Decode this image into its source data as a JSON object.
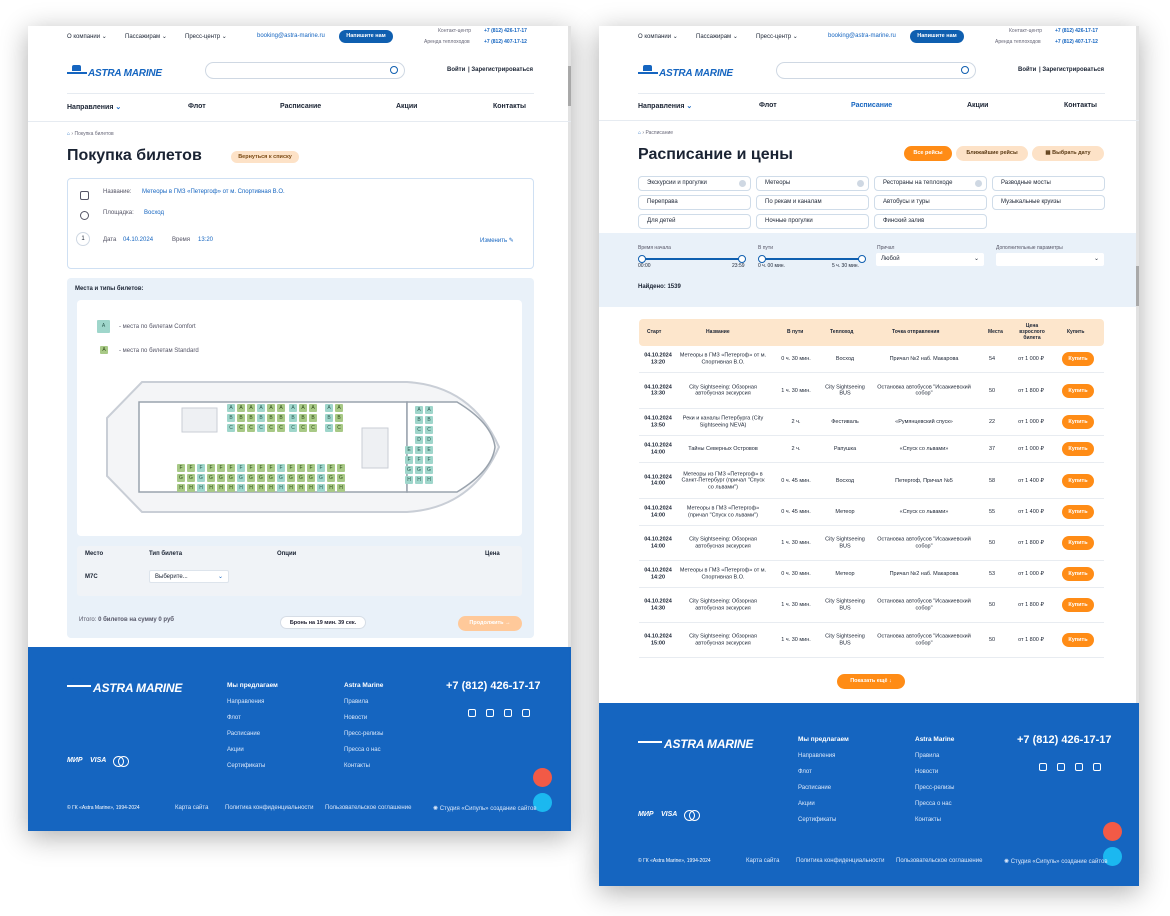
{
  "header": {
    "menu": [
      "О компании",
      "Пассажирам",
      "Пресс-центр"
    ],
    "email": "booking@astra-marine.ru",
    "write_btn": "Напишите нам",
    "contact_label": "Контакт-центр",
    "contact_phone": "+7 (812) 426-17-17",
    "rent_label": "Аренда теплоходов",
    "rent_phone": "+7 (812) 407-17-12",
    "login": "Войти",
    "register": "Зарегистрироваться",
    "logo": "ASTRA MARINE"
  },
  "nav": [
    "Направления",
    "Флот",
    "Расписание",
    "Акции",
    "Контакты"
  ],
  "left": {
    "breadcrumb": "Покупка билетов",
    "title": "Покупка билетов",
    "back_btn": "Вернуться к списку",
    "name_label": "Название:",
    "name_value": "Метеоры в ГМЗ «Петергоф» от м. Спортивная В.О.",
    "pier_label": "Площадка:",
    "pier_value": "Восход",
    "step": "1",
    "date_label": "Дата",
    "date_value": "04.10.2024",
    "time_label": "Время",
    "time_value": "13:20",
    "edit": "Изменить",
    "seats_title": "Места и типы билетов:",
    "legend_comfort": "- места по билетам Comfort",
    "legend_standard": "- места по билетам Standard",
    "th": [
      "Место",
      "Тип билета",
      "Опции",
      "Цена"
    ],
    "seat_code": "M7C",
    "select_placeholder": "Выберите...",
    "total": "Итого:",
    "total_value": "0 билетов на сумму 0 руб",
    "timer": "Бронь на 19 мин. 39 сек.",
    "continue": "Продолжить"
  },
  "footer": {
    "phone": "+7 (812) 426-17-17",
    "col1_title": "Мы предлагаем",
    "col1": [
      "Направления",
      "Флот",
      "Расписание",
      "Акции",
      "Сертификаты"
    ],
    "col2_title": "Astra Marine",
    "col2": [
      "Правила",
      "Новости",
      "Пресс-релизы",
      "Пресса о нас",
      "Контакты"
    ],
    "payments": [
      "МИР",
      "VISA"
    ],
    "copyright": "© ГК «Astra Marine», 1994-2024",
    "links": [
      "Карта сайта",
      "Политика конфиденциальности",
      "Пользовательское соглашение"
    ],
    "studio": "Студия «Сипуль» создание сайтов"
  },
  "right": {
    "breadcrumb": "Расписание",
    "title": "Расписание и цены",
    "tabs": [
      "Все рейсы",
      "Ближайшие рейсы",
      "Выбрать дату"
    ],
    "chips": [
      "Экскурсии и прогулки",
      "Метеоры",
      "Рестораны на теплоходе",
      "Разводные мосты",
      "Переправа",
      "По рекам и каналам",
      "Автобусы и туры",
      "Музыкальные круизы",
      "Для детей",
      "Ночные прогулки",
      "Финский залив"
    ],
    "f_start": "Время начала",
    "f_start_min": "00:00",
    "f_start_max": "23:59",
    "f_way": "В пути",
    "f_way_min": "0 ч. 00 мин.",
    "f_way_max": "5 ч. 30 мин.",
    "f_pier": "Причал",
    "f_pier_val": "Любой",
    "f_extra": "Дополнительные параметры",
    "found": "Найдено: 1539",
    "th": [
      "Старт",
      "Название",
      "В пути",
      "Теплоход",
      "Точка отправления",
      "Места",
      "Цена взрослого билета",
      "Купить"
    ],
    "rows": [
      [
        "04.10.2024",
        "13:20",
        "Метеоры в ГМЗ «Петергоф» от м. Спортивная В.О.",
        "0 ч. 30 мин.",
        "Восход",
        "Причал №2 наб. Макарова",
        "54",
        "от 1 000 ₽"
      ],
      [
        "04.10.2024",
        "13:30",
        "City Sightseeing: Обзорная автобусная экскурсия",
        "1 ч. 30 мин.",
        "City Sightseeing BUS",
        "Остановка автобусов \"Исаакиевский собор\"",
        "50",
        "от 1 800 ₽"
      ],
      [
        "04.10.2024",
        "13:50",
        "Реки и каналы Петербурга (City Sightseeing NEVA)",
        "2 ч.",
        "Фестиваль",
        "«Румянцевский спуск»",
        "22",
        "от 1 000 ₽"
      ],
      [
        "04.10.2024",
        "14:00",
        "Тайны Северных Островов",
        "2 ч.",
        "Рапушка",
        "«Спуск со львами»",
        "37",
        "от 1 000 ₽"
      ],
      [
        "04.10.2024",
        "14:00",
        "Метеоры из ГМЗ «Петергоф» в Санкт-Петербург (причал \"Спуск со львами\")",
        "0 ч. 45 мин.",
        "Восход",
        "Петергоф, Причал №5",
        "58",
        "от 1 400 ₽"
      ],
      [
        "04.10.2024",
        "14:00",
        "Метеоры в ГМЗ «Петергоф» (причал \"Спуск со львами\")",
        "0 ч. 45 мин.",
        "Метеор",
        "«Спуск со львами»",
        "55",
        "от 1 400 ₽"
      ],
      [
        "04.10.2024",
        "14:00",
        "City Sightseeing: Обзорная автобусная экскурсия",
        "1 ч. 30 мин.",
        "City Sightseeing BUS",
        "Остановка автобусов \"Исаакиевский собор\"",
        "50",
        "от 1 800 ₽"
      ],
      [
        "04.10.2024",
        "14:20",
        "Метеоры в ГМЗ «Петергоф» от м. Спортивная В.О.",
        "0 ч. 30 мин.",
        "Метеор",
        "Причал №2 наб. Макарова",
        "53",
        "от 1 000 ₽"
      ],
      [
        "04.10.2024",
        "14:30",
        "City Sightseeing: Обзорная автобусная экскурсия",
        "1 ч. 30 мин.",
        "City Sightseeing BUS",
        "Остановка автобусов \"Исаакиевский собор\"",
        "50",
        "от 1 800 ₽"
      ],
      [
        "04.10.2024",
        "15:00",
        "City Sightseeing: Обзорная автобусная экскурсия",
        "1 ч. 30 мин.",
        "City Sightseeing BUS",
        "Остановка автобусов \"Исаакиевский собор\"",
        "50",
        "от 1 800 ₽"
      ]
    ],
    "buy": "Купить",
    "more": "Показать ещё"
  },
  "colors": {
    "brand": "#1565c0",
    "accent": "#ff8c16"
  }
}
